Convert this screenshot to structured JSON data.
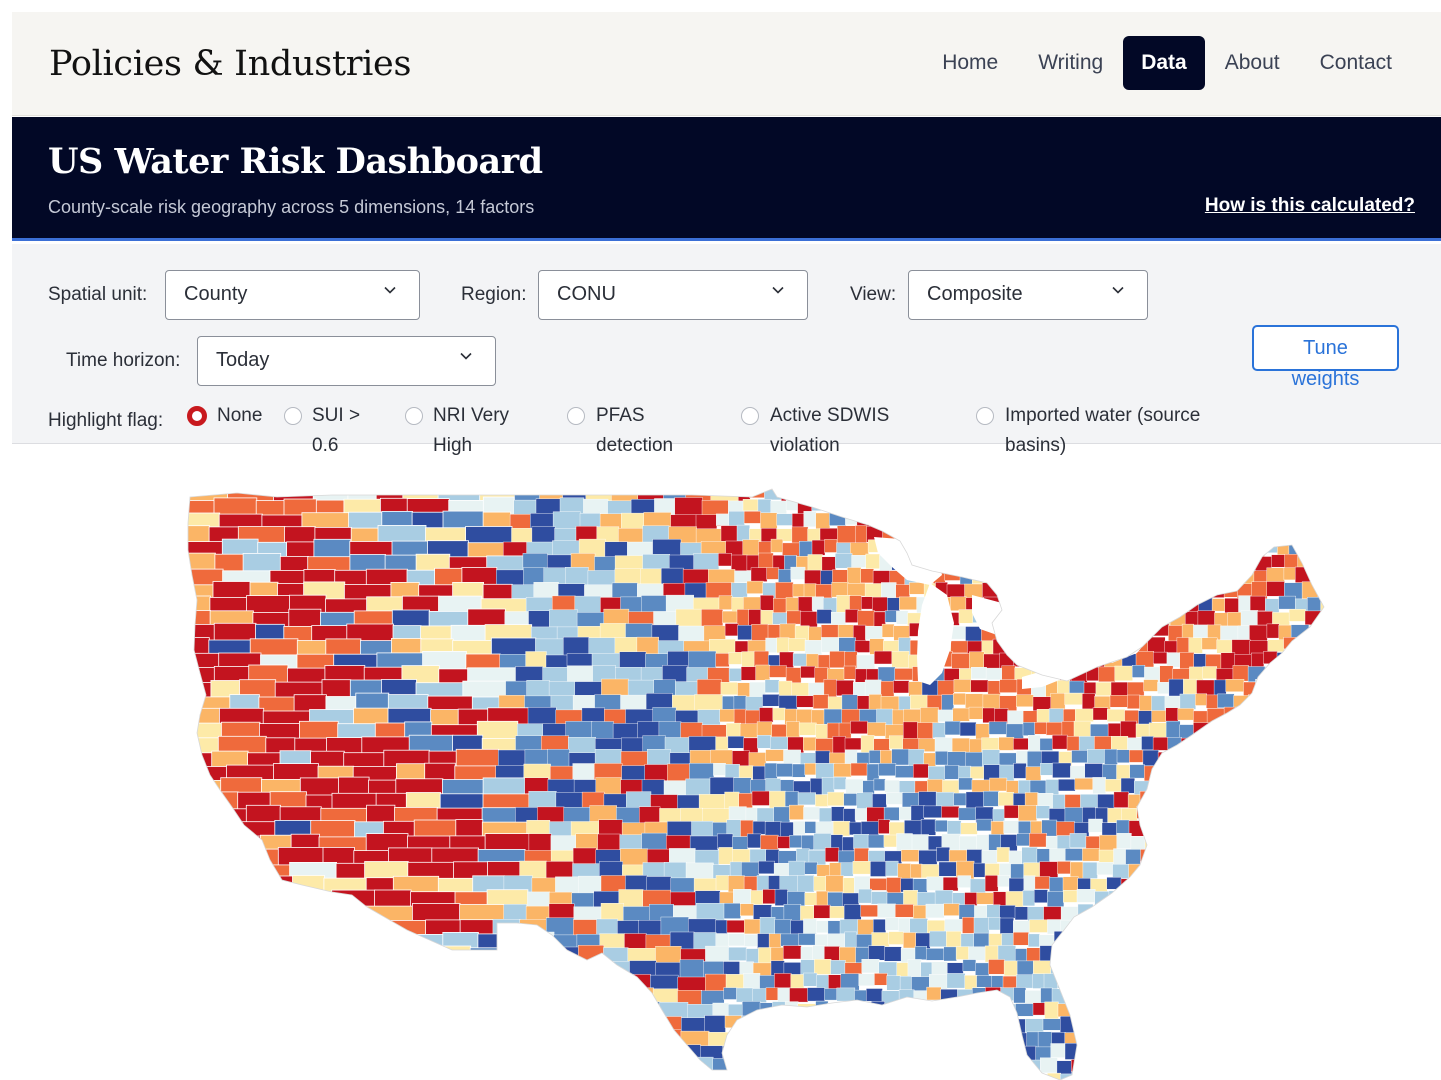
{
  "site": {
    "title": "Policies & Industries",
    "nav": [
      {
        "label": "Home",
        "active": false
      },
      {
        "label": "Writing",
        "active": false
      },
      {
        "label": "Data",
        "active": true
      },
      {
        "label": "About",
        "active": false
      },
      {
        "label": "Contact",
        "active": false
      }
    ]
  },
  "banner": {
    "title": "US Water Risk Dashboard",
    "subtitle": "County-scale risk geography across 5 dimensions, 14 factors",
    "help_link": "How is this calculated?"
  },
  "controls": {
    "spatial_unit": {
      "label": "Spatial unit:",
      "value": "County"
    },
    "region": {
      "label": "Region:",
      "value": "CONU"
    },
    "view": {
      "label": "View:",
      "value": "Composite"
    },
    "time_horizon": {
      "label": "Time horizon:",
      "value": "Today"
    },
    "tune_button": {
      "line1": "Tune",
      "line2": "weights"
    },
    "highlight": {
      "label": "Highlight flag:",
      "options": [
        {
          "line1": "None",
          "line2": "",
          "selected": true
        },
        {
          "line1": "SUI >",
          "line2": "0.6",
          "selected": false
        },
        {
          "line1": "NRI Very",
          "line2": "High",
          "selected": false
        },
        {
          "line1": "PFAS",
          "line2": "detection",
          "selected": false
        },
        {
          "line1": "Active SDWIS",
          "line2": "violation",
          "selected": false
        },
        {
          "line1": "Imported water (source",
          "line2": "basins)",
          "selected": false
        }
      ]
    }
  },
  "map": {
    "palette": [
      "#2f4da0",
      "#5b8ac2",
      "#a9cde3",
      "#e8f3f3",
      "#fdeaa8",
      "#fbb566",
      "#ef6a3c",
      "#c3141f"
    ],
    "water_color": "#ffffff"
  }
}
